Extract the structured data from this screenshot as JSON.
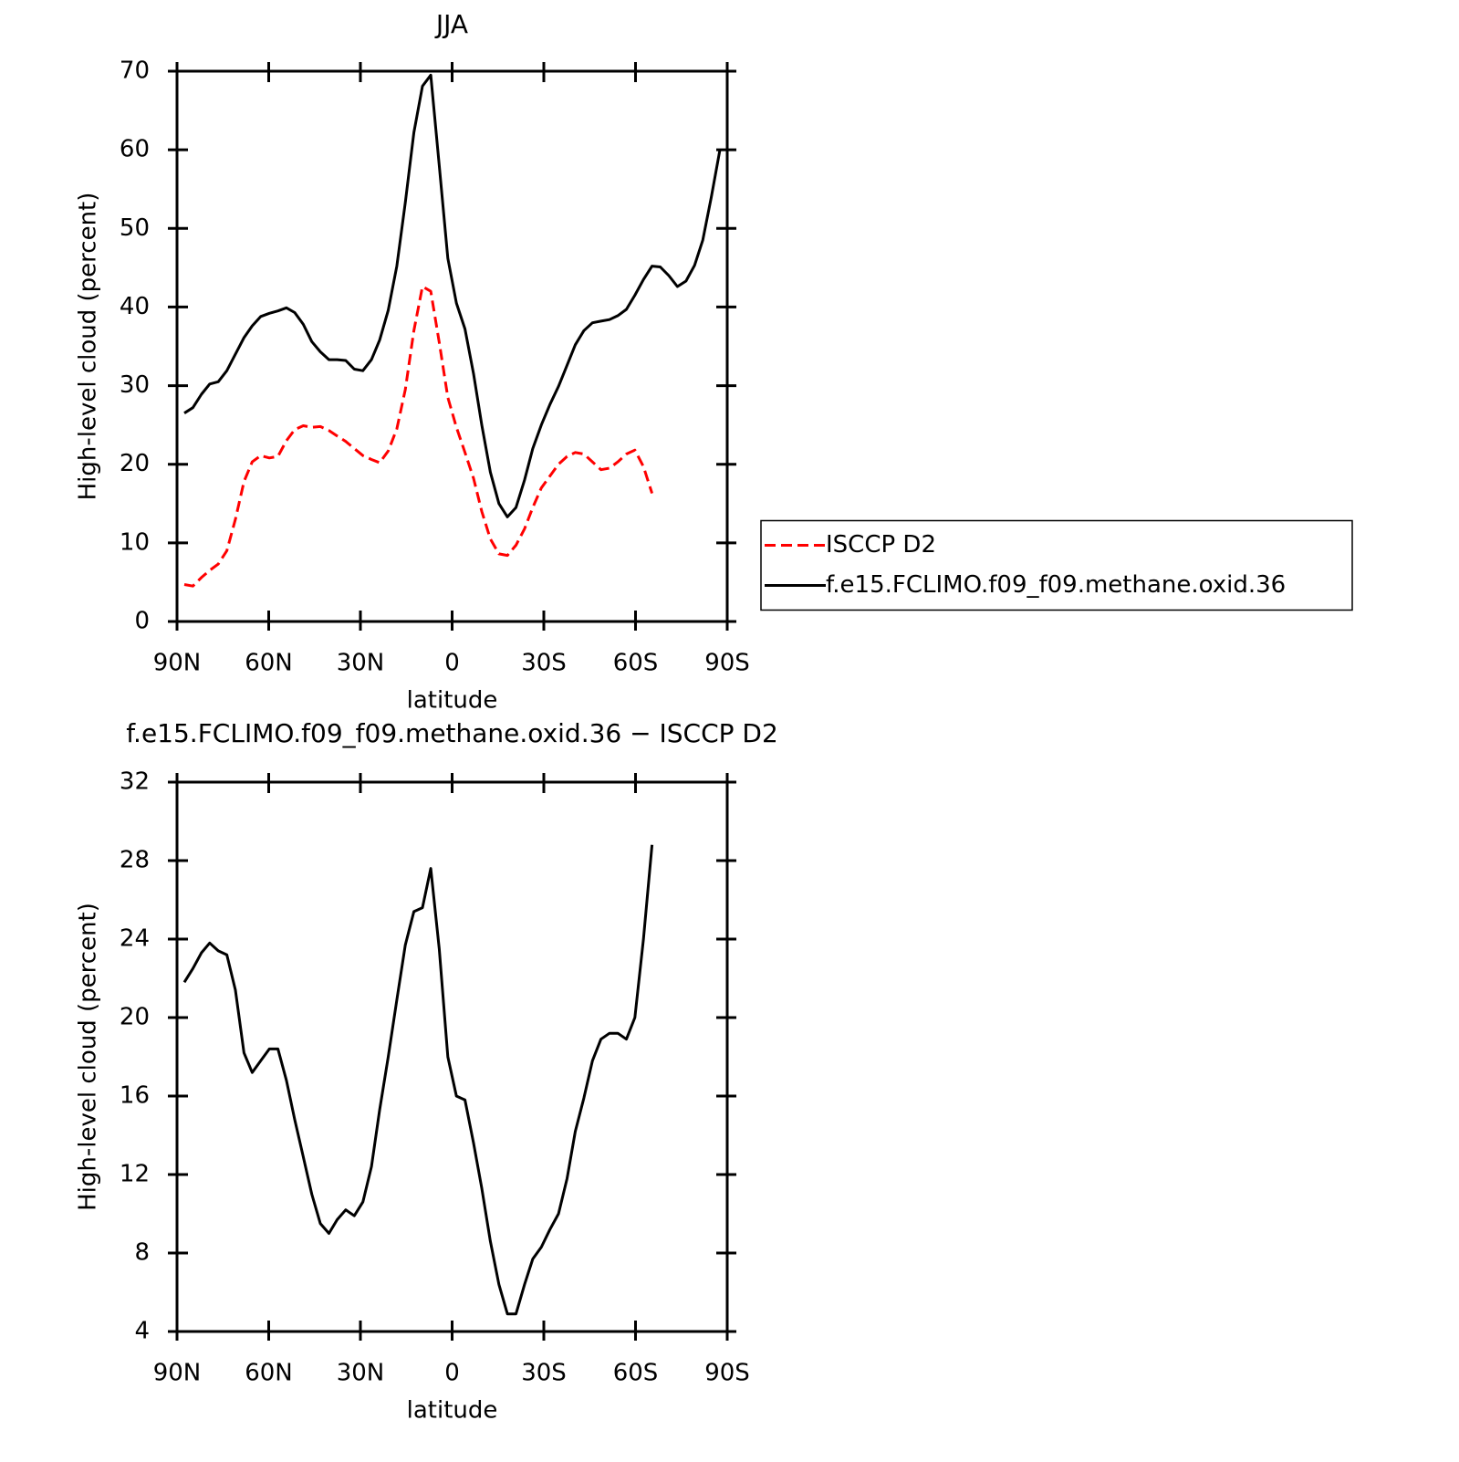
{
  "chart_data": [
    {
      "type": "line",
      "title": "JJA",
      "xlabel": "latitude",
      "ylabel": "High-level cloud (percent)",
      "x": [
        87.6,
        84.8,
        82.0,
        79.3,
        76.5,
        73.7,
        70.9,
        68.1,
        65.4,
        62.6,
        59.8,
        57.0,
        54.2,
        51.5,
        48.7,
        45.9,
        43.1,
        40.3,
        37.6,
        34.8,
        32.0,
        29.2,
        26.4,
        23.7,
        20.9,
        18.1,
        15.3,
        12.5,
        9.7,
        7.0,
        4.2,
        1.4,
        -1.4,
        -4.2,
        -7.0,
        -9.7,
        -12.5,
        -15.3,
        -18.1,
        -20.9,
        -23.7,
        -26.4,
        -29.2,
        -32.0,
        -34.8,
        -37.6,
        -40.3,
        -43.1,
        -45.9,
        -48.7,
        -51.5,
        -54.2,
        -57.0,
        -59.8,
        -62.6,
        -65.4,
        -68.1,
        -70.9,
        -73.7,
        -76.5,
        -79.3,
        -82.0,
        -84.8,
        -87.6
      ],
      "series": [
        {
          "name": "ISCCP D2",
          "color": "#ff0000",
          "style": "dashed",
          "values": [
            4.7,
            4.5,
            5.6,
            6.5,
            7.3,
            9.0,
            13.0,
            17.8,
            20.3,
            21.1,
            20.8,
            21.0,
            23.0,
            24.4,
            24.9,
            24.7,
            24.8,
            24.3,
            23.6,
            22.9,
            22.0,
            21.1,
            20.6,
            20.2,
            21.7,
            24.5,
            29.5,
            37.0,
            42.6,
            42.0,
            35.5,
            28.5,
            24.7,
            21.5,
            18.2,
            14.0,
            10.5,
            8.6,
            8.4,
            9.7,
            11.8,
            14.5,
            17.0,
            18.5,
            20.0,
            21.0,
            21.5,
            21.3,
            20.3,
            19.3,
            19.5,
            20.3,
            21.3,
            21.8,
            19.7,
            16.3,
            null,
            null,
            null,
            null,
            null,
            null,
            null,
            null
          ]
        },
        {
          "name": "f.e15.FCLIMO.f09_f09.methane.oxid.36",
          "color": "#000000",
          "style": "solid",
          "values": [
            26.5,
            27.2,
            28.9,
            30.2,
            30.5,
            31.9,
            34.0,
            36.1,
            37.6,
            38.8,
            39.2,
            39.5,
            39.9,
            39.3,
            37.8,
            35.6,
            34.3,
            33.3,
            33.3,
            33.2,
            32.1,
            31.9,
            33.3,
            35.8,
            39.6,
            45.2,
            53.3,
            62.2,
            68.1,
            69.5,
            58.0,
            46.2,
            40.5,
            37.2,
            31.5,
            25.0,
            19.0,
            15.0,
            13.3,
            14.5,
            18.0,
            22.0,
            25.0,
            27.6,
            29.9,
            32.6,
            35.2,
            37.0,
            38.0,
            38.2,
            38.4,
            38.9,
            39.7,
            41.5,
            43.5,
            45.2,
            45.1,
            44.0,
            42.6,
            43.3,
            45.3,
            48.5,
            54.0,
            60.0
          ]
        }
      ],
      "xlim": [
        90,
        -90
      ],
      "xticks": [
        {
          "value": 90,
          "label": "90N"
        },
        {
          "value": 60,
          "label": "60N"
        },
        {
          "value": 30,
          "label": "30N"
        },
        0,
        {
          "value": -30,
          "label": "30S"
        },
        {
          "value": -60,
          "label": "60S"
        },
        {
          "value": -90,
          "label": "90S"
        }
      ],
      "ylim": [
        0,
        70
      ],
      "yticks": [
        0,
        10,
        20,
        30,
        40,
        50,
        60,
        70
      ],
      "grid": false,
      "legend": "right"
    },
    {
      "type": "line",
      "title": "f.e15.FCLIMO.f09_f09.methane.oxid.36 − ISCCP D2",
      "xlabel": "latitude",
      "ylabel": "High-level cloud (percent)",
      "x": [
        87.6,
        84.8,
        82.0,
        79.3,
        76.5,
        73.7,
        70.9,
        68.1,
        65.4,
        62.6,
        59.8,
        57.0,
        54.2,
        51.5,
        48.7,
        45.9,
        43.1,
        40.3,
        37.6,
        34.8,
        32.0,
        29.2,
        26.4,
        23.7,
        20.9,
        18.1,
        15.3,
        12.5,
        9.7,
        7.0,
        4.2,
        1.4,
        -1.4,
        -4.2,
        -7.0,
        -9.7,
        -12.5,
        -15.3,
        -18.1,
        -20.9,
        -23.7,
        -26.4,
        -29.2,
        -32.0,
        -34.8,
        -37.6,
        -40.3,
        -43.1,
        -45.9,
        -48.7,
        -51.5,
        -54.2,
        -57.0,
        -59.8,
        -62.6,
        -65.4,
        -68.1,
        -70.9,
        -73.7,
        -76.5,
        -79.3,
        -82.0,
        -84.8,
        -87.6
      ],
      "series": [
        {
          "color": "#000000",
          "style": "solid",
          "values": [
            21.8,
            22.5,
            23.3,
            23.8,
            23.4,
            23.2,
            21.4,
            18.2,
            17.2,
            17.8,
            18.4,
            18.4,
            16.8,
            14.8,
            12.9,
            11.0,
            9.5,
            9.0,
            9.7,
            10.2,
            9.9,
            10.6,
            12.4,
            15.3,
            18.0,
            20.9,
            23.7,
            25.4,
            25.6,
            27.6,
            23.5,
            18.0,
            16.0,
            15.8,
            13.6,
            11.3,
            8.6,
            6.4,
            4.9,
            4.9,
            6.4,
            7.7,
            8.3,
            9.2,
            10.0,
            11.8,
            14.2,
            15.9,
            17.8,
            18.9,
            19.2,
            19.2,
            18.9,
            20.0,
            24.0,
            28.8,
            null,
            null,
            null,
            null,
            null,
            null,
            null,
            null
          ]
        }
      ],
      "xlim": [
        90,
        -90
      ],
      "xticks": [
        {
          "value": 90,
          "label": "90N"
        },
        {
          "value": 60,
          "label": "60N"
        },
        {
          "value": 30,
          "label": "30N"
        },
        0,
        {
          "value": -30,
          "label": "30S"
        },
        {
          "value": -60,
          "label": "60S"
        },
        {
          "value": -90,
          "label": "90S"
        }
      ],
      "ylim": [
        4,
        32
      ],
      "yticks": [
        4,
        8,
        12,
        16,
        20,
        24,
        28,
        32
      ],
      "grid": false
    }
  ]
}
